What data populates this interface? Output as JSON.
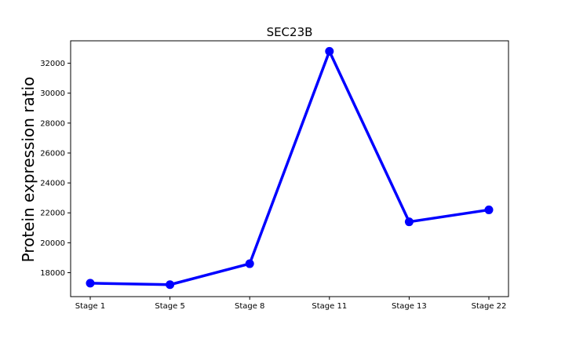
{
  "chart_data": {
    "type": "line",
    "title": "SEC23B",
    "xlabel": "",
    "ylabel": "Protein expression ratio",
    "categories": [
      "Stage 1",
      "Stage 5",
      "Stage 8",
      "Stage 11",
      "Stage 13",
      "Stage 22"
    ],
    "series": [
      {
        "values": [
          17300,
          17200,
          18600,
          32800,
          21400,
          22200
        ],
        "color": "#0000ff"
      }
    ],
    "ylim": [
      16400,
      33500
    ],
    "yticks": [
      18000,
      20000,
      22000,
      24000,
      26000,
      28000,
      30000,
      32000
    ],
    "grid": false,
    "legend": "none"
  }
}
